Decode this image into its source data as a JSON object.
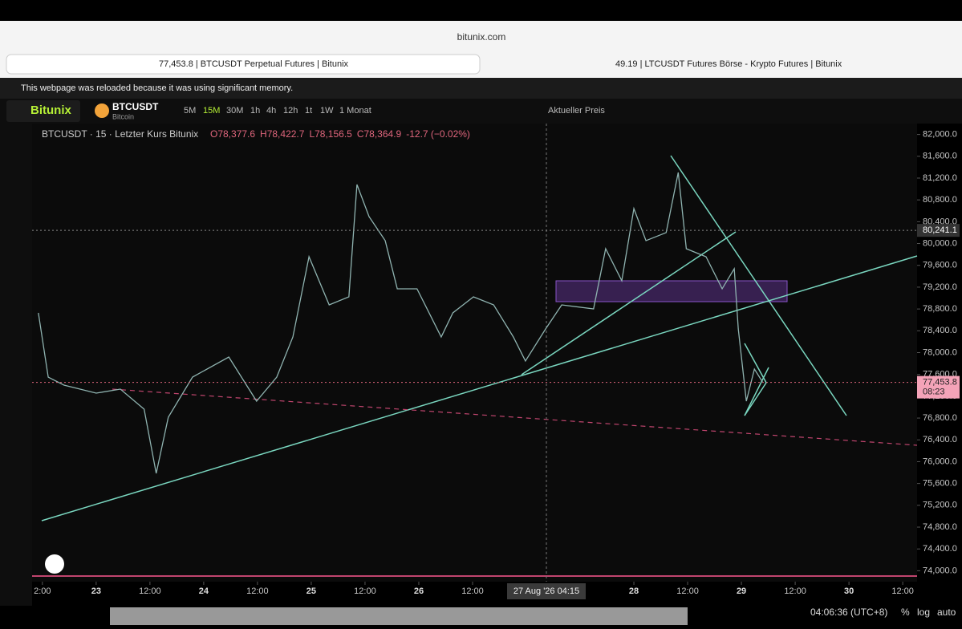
{
  "browser": {
    "url": "bitunix.com",
    "tabs": [
      "77,453.8 | BTCUSDT Perpetual Futures | Bitunix",
      "49.19 | LTCUSDT Futures Börse - Krypto Futures | Bitunix"
    ],
    "notice": "This webpage was reloaded because it was using significant memory."
  },
  "toolbar": {
    "brand": "Bitunix",
    "symbol": "BTCUSDT",
    "symbol_name": "Bitcoin",
    "intervals": [
      "5M",
      "15M",
      "30M",
      "1h",
      "4h",
      "12h",
      "1t",
      "1W",
      "1 Monat"
    ],
    "price_mode": "Aktueller Preis"
  },
  "chart_data": {
    "type": "line",
    "title": "BTCUSDT · 15 · Letzter Kurs Bitunix",
    "ohlc": [
      "O78,377.6",
      "H78,422.7",
      "L78,156.5",
      "C78,364.9",
      "-12.7 (−0.02%)"
    ],
    "x": [
      -12.9,
      -10.7,
      -7.2,
      0,
      5.4,
      10.7,
      13.4,
      16.1,
      21.5,
      29.6,
      35.8,
      40.3,
      43.9,
      47.5,
      52,
      56.4,
      58.2,
      60.9,
      64.5,
      67.2,
      71.6,
      77,
      79.6,
      84.2,
      88.7,
      93.1,
      95.8,
      100.3,
      103.9,
      111,
      113.7,
      117.3,
      120,
      122.7,
      127.2,
      129.9,
      131.7,
      136.1,
      139.7,
      142.4,
      143.3,
      145.1,
      146.9,
      148.7
    ],
    "series": [
      {
        "name": "BTCUSDT",
        "color": "#8fb3b0",
        "values": [
          78729,
          77550,
          77404,
          77257,
          77330,
          76963,
          75786,
          76816,
          77551,
          77919,
          77110,
          77551,
          78287,
          79758,
          78875,
          79023,
          81082,
          80494,
          80053,
          79170,
          79170,
          78287,
          78729,
          79023,
          78875,
          78287,
          77846,
          78434,
          78875,
          78802,
          79905,
          79317,
          80641,
          80053,
          80200,
          81303,
          79905,
          79758,
          79170,
          79538,
          78434,
          77110,
          77698,
          77463
        ]
      }
    ],
    "ylim": [
      73800,
      82200
    ],
    "yticks": [
      {
        "value": 74000,
        "label": "74,000.0"
      },
      {
        "value": 74400,
        "label": "74,400.0"
      },
      {
        "value": 74800,
        "label": "74,800.0"
      },
      {
        "value": 75200,
        "label": "75,200.0"
      },
      {
        "value": 75600,
        "label": "75,600.0"
      },
      {
        "value": 76000,
        "label": "76,000.0"
      },
      {
        "value": 76400,
        "label": "76,400.0"
      },
      {
        "value": 76800,
        "label": "76,800.0"
      },
      {
        "value": 77200,
        "label": "77,200.0"
      },
      {
        "value": 77600,
        "label": "77,600.0"
      },
      {
        "value": 78000,
        "label": "78,000.0"
      },
      {
        "value": 78400,
        "label": "78,400.0"
      },
      {
        "value": 78800,
        "label": "78,800.0"
      },
      {
        "value": 79200,
        "label": "79,200.0"
      },
      {
        "value": 79600,
        "label": "79,600.0"
      },
      {
        "value": 80000,
        "label": "80,000.0"
      },
      {
        "value": 80400,
        "label": "80,400.0"
      },
      {
        "value": 80800,
        "label": "80,800.0"
      },
      {
        "value": 81200,
        "label": "81,200.0"
      },
      {
        "value": 81600,
        "label": "81,600.0"
      },
      {
        "value": 82000,
        "label": "82,000.0"
      }
    ],
    "xlim": [
      -14.3,
      183.2
    ],
    "xticks": [
      {
        "value": -12,
        "label": "2:00"
      },
      {
        "value": 0,
        "label": "23"
      },
      {
        "value": 12,
        "label": "12:00"
      },
      {
        "value": 24,
        "label": "24"
      },
      {
        "value": 36,
        "label": "12:00"
      },
      {
        "value": 48,
        "label": "25"
      },
      {
        "value": 60,
        "label": "12:00"
      },
      {
        "value": 72,
        "label": "26"
      },
      {
        "value": 84,
        "label": "12:00"
      },
      {
        "value": 120,
        "label": "28"
      },
      {
        "value": 132,
        "label": "12:00"
      },
      {
        "value": 144,
        "label": "29"
      },
      {
        "value": 156,
        "label": "12:00"
      },
      {
        "value": 168,
        "label": "30"
      },
      {
        "value": 180,
        "label": "12:00"
      }
    ],
    "crosshair_label": "27 Aug '26  04:15",
    "price_lines": [
      {
        "value": 80241.1,
        "label": "80,241.1"
      },
      {
        "value": 77453.8,
        "label": "77,453.8",
        "countdown": "08:23"
      }
    ],
    "footer": {
      "clock": "04:06:36 (UTC+8)",
      "options": [
        "%",
        "log",
        "auto"
      ]
    }
  }
}
